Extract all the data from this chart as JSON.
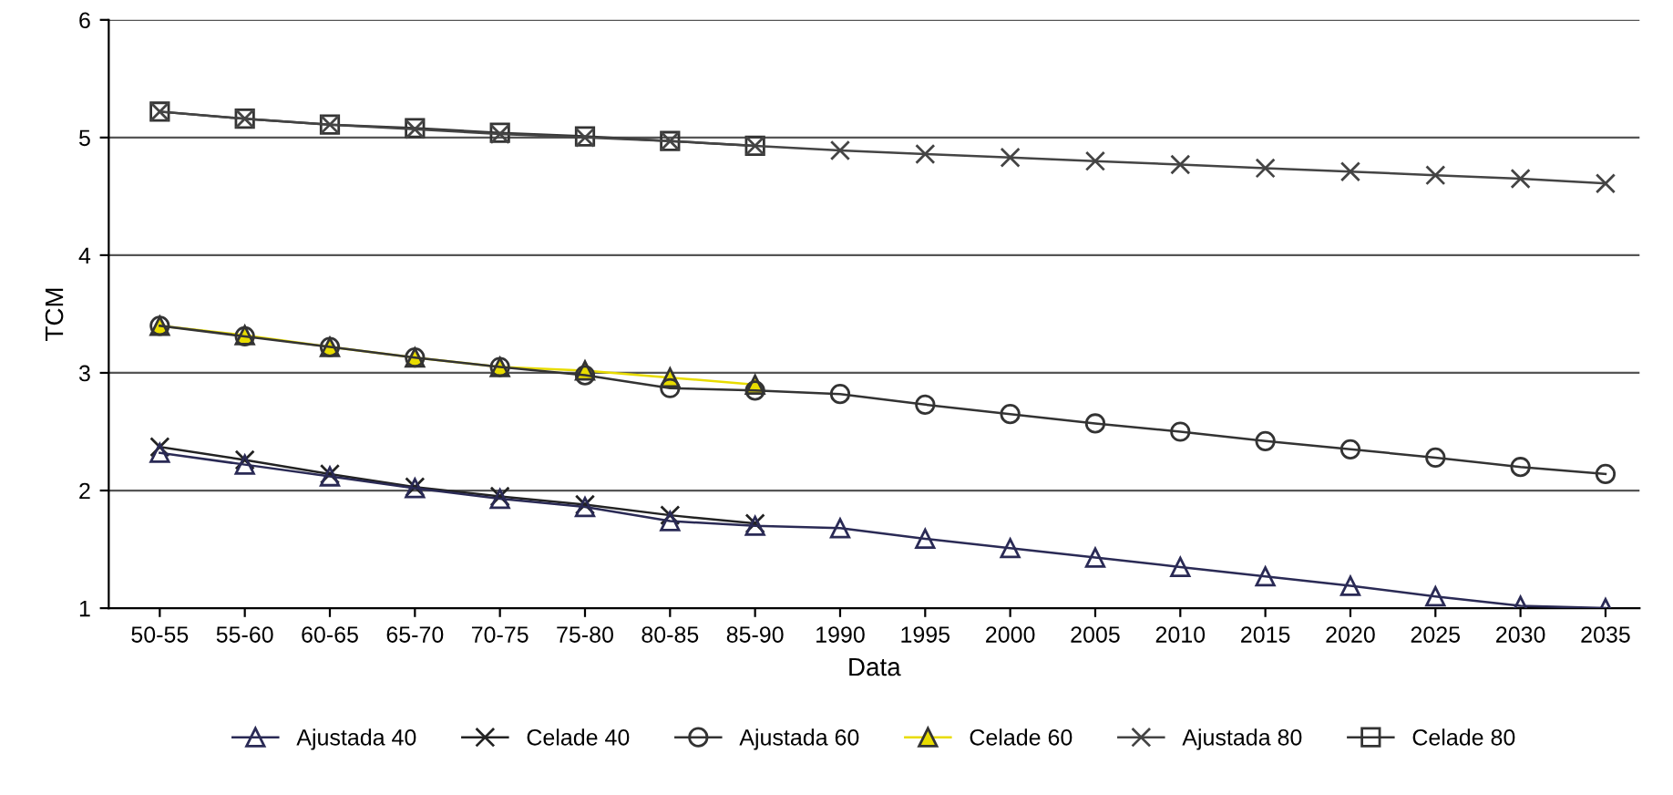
{
  "chart_data": {
    "type": "line",
    "xlabel": "Data",
    "ylabel": "TCM",
    "categories": [
      "50-55",
      "55-60",
      "60-65",
      "65-70",
      "70-75",
      "75-80",
      "80-85",
      "85-90",
      "1990",
      "1995",
      "2000",
      "2005",
      "2010",
      "2015",
      "2020",
      "2025",
      "2030",
      "2035"
    ],
    "ylim": [
      1,
      6
    ],
    "yticks": [
      1,
      2,
      3,
      4,
      5,
      6
    ],
    "grid": "y",
    "legend": "bottom",
    "series": [
      {
        "name": "Ajustada 40",
        "color": "#2a2a55",
        "marker": "triangle",
        "values": [
          2.32,
          2.22,
          2.12,
          2.02,
          1.93,
          1.86,
          1.74,
          1.7,
          1.68,
          1.59,
          1.51,
          1.43,
          1.35,
          1.27,
          1.19,
          1.1,
          1.02,
          1.0
        ]
      },
      {
        "name": "Celade 40",
        "color": "#222222",
        "marker": "cross",
        "values": [
          2.37,
          2.26,
          2.14,
          2.03,
          1.95,
          1.88,
          1.79,
          1.72,
          null,
          null,
          null,
          null,
          null,
          null,
          null,
          null,
          null,
          null
        ]
      },
      {
        "name": "Ajustada 60",
        "color": "#333333",
        "marker": "circle",
        "values": [
          3.4,
          3.31,
          3.22,
          3.13,
          3.05,
          2.98,
          2.87,
          2.85,
          2.82,
          2.73,
          2.65,
          2.57,
          2.5,
          2.42,
          2.35,
          2.28,
          2.2,
          2.14
        ]
      },
      {
        "name": "Celade 60",
        "color": "#e8dc00",
        "marker": "triangle",
        "values": [
          3.4,
          3.32,
          3.22,
          3.13,
          3.05,
          3.02,
          2.96,
          2.9,
          null,
          null,
          null,
          null,
          null,
          null,
          null,
          null,
          null,
          null
        ]
      },
      {
        "name": "Ajustada 80",
        "color": "#444444",
        "marker": "cross",
        "values": [
          5.22,
          5.16,
          5.11,
          5.07,
          5.03,
          5.0,
          4.97,
          4.93,
          4.89,
          4.86,
          4.83,
          4.8,
          4.77,
          4.74,
          4.71,
          4.68,
          4.65,
          4.61
        ]
      },
      {
        "name": "Celade 80",
        "color": "#333333",
        "marker": "square",
        "values": [
          5.22,
          5.16,
          5.11,
          5.08,
          5.04,
          5.01,
          4.97,
          4.93,
          null,
          null,
          null,
          null,
          null,
          null,
          null,
          null,
          null,
          null
        ]
      }
    ]
  }
}
